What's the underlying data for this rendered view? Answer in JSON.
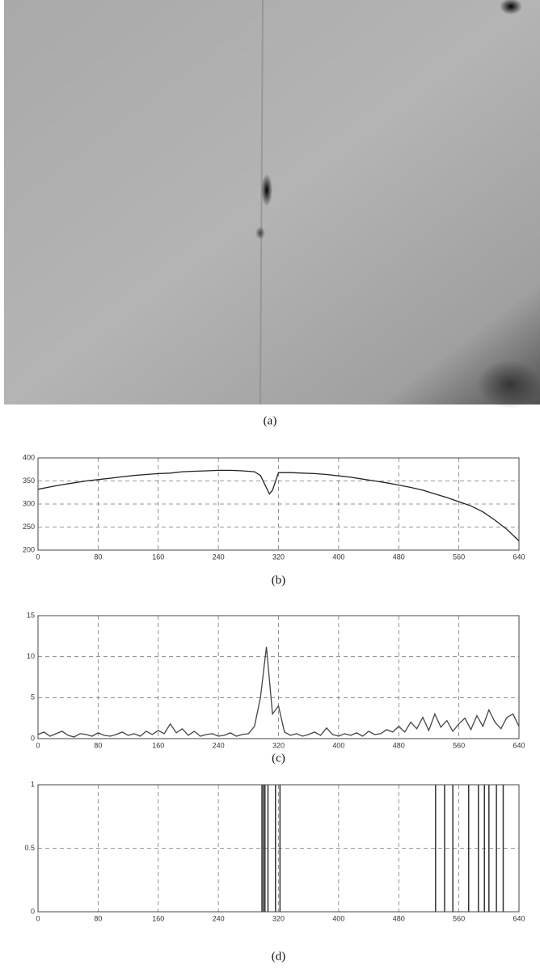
{
  "image": {
    "caption": "(a)"
  },
  "chart_data": [
    {
      "type": "line",
      "caption": "(b)",
      "color": "#222222",
      "grid": true,
      "x": [
        0,
        16,
        32,
        48,
        64,
        80,
        96,
        112,
        128,
        144,
        160,
        176,
        192,
        208,
        224,
        240,
        256,
        272,
        288,
        296,
        304,
        308,
        312,
        320,
        336,
        352,
        368,
        384,
        400,
        416,
        432,
        448,
        464,
        480,
        496,
        512,
        528,
        544,
        560,
        576,
        592,
        608,
        624,
        640
      ],
      "values": [
        332,
        337,
        342,
        346,
        350,
        353,
        356,
        359,
        362,
        364,
        366,
        367,
        370,
        371,
        372,
        373,
        373,
        372,
        370,
        362,
        335,
        322,
        330,
        368,
        368,
        367,
        366,
        364,
        361,
        358,
        354,
        350,
        346,
        341,
        336,
        330,
        322,
        314,
        305,
        296,
        283,
        265,
        245,
        220
      ],
      "xlim": [
        0,
        640
      ],
      "xticks": [
        0,
        80,
        160,
        240,
        320,
        400,
        480,
        560,
        640
      ],
      "ylim": [
        200,
        400
      ],
      "yticks": [
        200,
        250,
        300,
        350,
        400
      ]
    },
    {
      "type": "line",
      "caption": "(c)",
      "color": "#444444",
      "grid": true,
      "x": [
        0,
        8,
        16,
        24,
        32,
        40,
        48,
        56,
        64,
        72,
        80,
        88,
        96,
        104,
        112,
        120,
        128,
        136,
        144,
        152,
        160,
        168,
        176,
        184,
        192,
        200,
        208,
        216,
        224,
        232,
        240,
        248,
        256,
        264,
        272,
        280,
        288,
        296,
        304,
        312,
        320,
        328,
        336,
        344,
        352,
        360,
        368,
        376,
        384,
        392,
        400,
        408,
        416,
        424,
        432,
        440,
        448,
        456,
        464,
        472,
        480,
        488,
        496,
        504,
        512,
        520,
        528,
        536,
        544,
        552,
        560,
        568,
        576,
        584,
        592,
        600,
        608,
        616,
        624,
        632,
        640
      ],
      "values": [
        0.5,
        0.8,
        0.3,
        0.6,
        0.9,
        0.4,
        0.2,
        0.6,
        0.5,
        0.3,
        0.7,
        0.4,
        0.3,
        0.5,
        0.8,
        0.4,
        0.6,
        0.3,
        0.9,
        0.5,
        1.0,
        0.6,
        1.8,
        0.7,
        1.2,
        0.4,
        0.9,
        0.3,
        0.5,
        0.6,
        0.3,
        0.4,
        0.7,
        0.3,
        0.5,
        0.6,
        1.5,
        5.0,
        11.2,
        3.0,
        4.0,
        0.8,
        0.4,
        0.6,
        0.3,
        0.5,
        0.8,
        0.4,
        1.3,
        0.5,
        0.3,
        0.6,
        0.4,
        0.7,
        0.3,
        0.9,
        0.5,
        0.6,
        1.1,
        0.8,
        1.5,
        0.8,
        2.0,
        1.2,
        2.6,
        1.0,
        3.0,
        1.4,
        2.2,
        0.9,
        1.8,
        2.5,
        1.1,
        2.8,
        1.5,
        3.5,
        2.0,
        1.2,
        2.6,
        3.0,
        1.5
      ],
      "xlim": [
        0,
        640
      ],
      "xticks": [
        0,
        80,
        160,
        240,
        320,
        400,
        480,
        560,
        640
      ],
      "ylim": [
        0,
        15
      ],
      "yticks": [
        0,
        5,
        10,
        15
      ]
    },
    {
      "type": "stem",
      "caption": "(d)",
      "color": "#333333",
      "grid": true,
      "x": [
        298,
        300,
        302,
        306,
        316,
        322,
        529,
        541,
        552,
        573,
        586,
        594,
        600,
        610,
        619
      ],
      "values": [
        1,
        1,
        1,
        1,
        1,
        1,
        1,
        1,
        1,
        1,
        1,
        1,
        1,
        1,
        1
      ],
      "xlim": [
        0,
        640
      ],
      "xticks": [
        0,
        80,
        160,
        240,
        320,
        400,
        480,
        560,
        640
      ],
      "ylim": [
        0,
        1
      ],
      "yticks": [
        0,
        0.5,
        1
      ]
    }
  ]
}
